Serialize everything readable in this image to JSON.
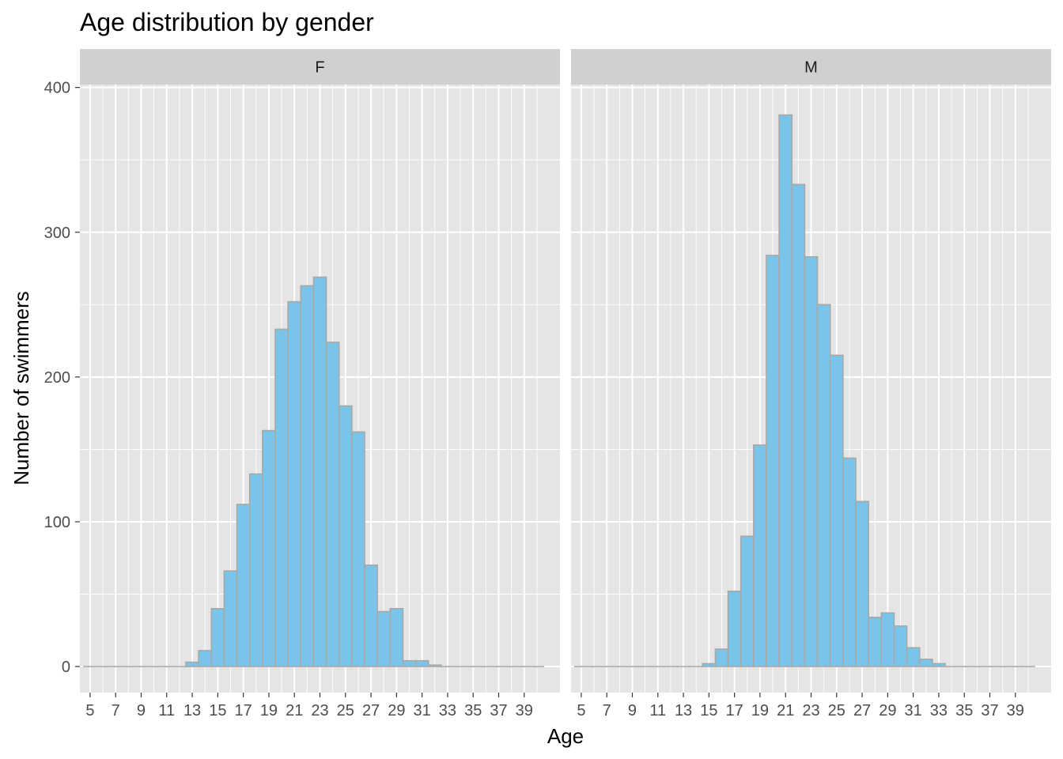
{
  "chart_data": {
    "type": "bar",
    "title": "Age distribution by gender",
    "xlabel": "Age",
    "ylabel": "Number of swimmers",
    "x": [
      5,
      6,
      7,
      8,
      9,
      10,
      11,
      12,
      13,
      14,
      15,
      16,
      17,
      18,
      19,
      20,
      21,
      22,
      23,
      24,
      25,
      26,
      27,
      28,
      29,
      30,
      31,
      32,
      33,
      34,
      35,
      36,
      37,
      38,
      39,
      40
    ],
    "xticks": [
      5,
      7,
      9,
      11,
      13,
      15,
      17,
      19,
      21,
      23,
      25,
      27,
      29,
      31,
      33,
      35,
      37,
      39
    ],
    "yticks": [
      0,
      100,
      200,
      300,
      400
    ],
    "xlim": [
      4.2,
      41.8
    ],
    "ylim": [
      -18,
      402
    ],
    "grid": true,
    "facets": [
      {
        "name": "F",
        "values": [
          0,
          0,
          0,
          0,
          0,
          0,
          0,
          0,
          3,
          11,
          40,
          66,
          112,
          133,
          163,
          233,
          252,
          263,
          269,
          224,
          180,
          162,
          70,
          38,
          40,
          4,
          4,
          1,
          0,
          0,
          0,
          0,
          0,
          0,
          0,
          0
        ]
      },
      {
        "name": "M",
        "values": [
          0,
          0,
          0,
          0,
          0,
          0,
          0,
          0,
          0,
          0,
          2,
          12,
          52,
          90,
          153,
          284,
          381,
          333,
          283,
          250,
          215,
          144,
          114,
          34,
          37,
          28,
          13,
          5,
          2,
          0,
          0,
          0,
          0,
          0,
          0,
          0
        ]
      }
    ],
    "bar_fill": "#78c5e9",
    "bar_stroke": "#a8a8a8",
    "panel_background": "#e5e5e5",
    "strip_background": "#d0d0d0",
    "grid_color": "#ffffff"
  }
}
